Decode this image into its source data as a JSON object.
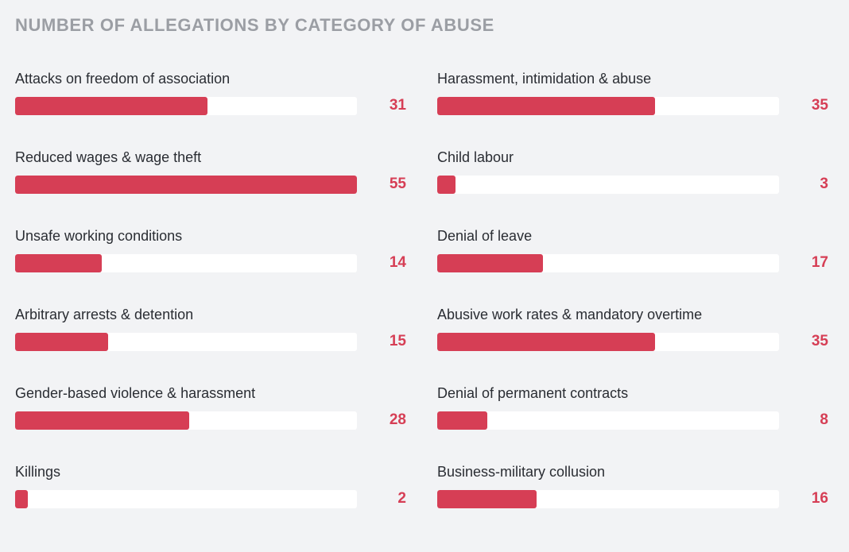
{
  "chart_data": {
    "type": "bar",
    "orientation": "horizontal",
    "title": "NUMBER OF ALLEGATIONS BY CATEGORY OF ABUSE",
    "xlim": [
      0,
      55
    ],
    "grid": false,
    "bar_color": "#d63e55",
    "track_color": "#ffffff",
    "categories": [
      "Attacks on freedom of association",
      "Harassment, intimidation & abuse",
      "Reduced wages & wage theft",
      "Child labour",
      "Unsafe working conditions",
      "Denial of leave",
      "Arbitrary arrests & detention",
      "Abusive work rates & mandatory overtime",
      "Gender-based violence & harassment",
      "Denial of permanent contracts",
      "Killings",
      "Business-military collusion"
    ],
    "values": [
      31,
      35,
      55,
      3,
      14,
      17,
      15,
      35,
      28,
      8,
      2,
      16
    ],
    "layout": "two-column"
  }
}
